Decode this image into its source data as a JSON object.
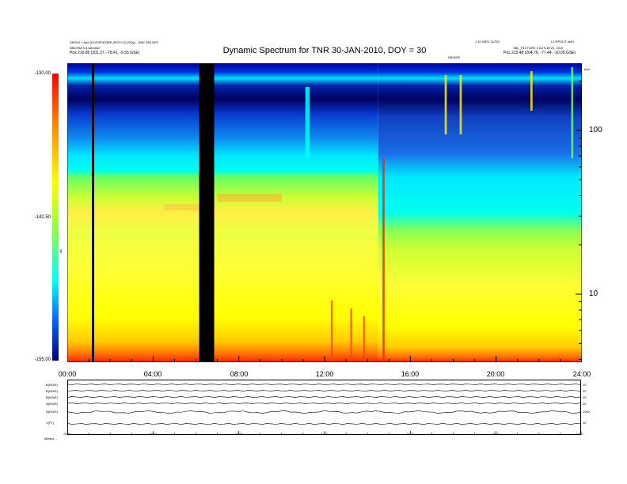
{
  "header": {
    "left_line1": "DBSU0 = 9ee [DOO3P4D3BP (P03 0 D) (SDy) - DNE DR] NPC",
    "left_line2": "NBOF88 9.3 w8m002",
    "left_line3": "Pos    216.86 (201.27, -78.41, -9.55 GSE)",
    "right_line1": "1.10 WED 2UT02",
    "right_line2": "L2.RPOUT rls01",
    "right_line3": "SBL_P1CTURE 3 2UTLBT20, 2010",
    "right_line4": "Pos    215.48 (204.76, -77.44, -10.05 GSE)",
    "mid_small": "DB/DDE",
    "unit_small": "kHz"
  },
  "chart_data": {
    "type": "heatmap",
    "title": "Dynamic Spectrum for TNR 30-JAN-2010, DOY = 30",
    "x_ticks": [
      "00:00",
      "04:00",
      "08:00",
      "12:00",
      "16:00",
      "20:00",
      "24:00"
    ],
    "x_range_hours": [
      0,
      24
    ],
    "y_scale": "log",
    "y_ticks": [
      "100",
      "10"
    ],
    "colorbar": {
      "ticks": [
        "-130.00",
        "-142.50",
        "-155.00"
      ],
      "range": [
        -155.0,
        -130.0
      ],
      "unit": "dB",
      "colors": [
        "#000080",
        "#0066ff",
        "#00ffff",
        "#88ff44",
        "#ffff00",
        "#ff8800",
        "#ff0000"
      ]
    },
    "data_gaps_hours": [
      [
        1.15,
        1.25
      ],
      [
        6.15,
        6.85
      ]
    ],
    "panel_x_ticks": [
      "0000",
      "0400",
      "0800",
      "1200",
      "1600",
      "2000",
      "2400"
    ],
    "panel_rows": [
      {
        "label": "B(NOIE)",
        "right": "20"
      },
      {
        "label": "B(NOIE)",
        "right": "20"
      },
      {
        "label": "B(NOIE)",
        "right": "20"
      },
      {
        "label": "N(NOIE)",
        "right": "20"
      },
      {
        "label": "N(NOIE)",
        "right": "1000"
      },
      {
        "label": "V(FT)",
        "right": "10"
      }
    ],
    "panel_footer": "Meters  ..."
  }
}
